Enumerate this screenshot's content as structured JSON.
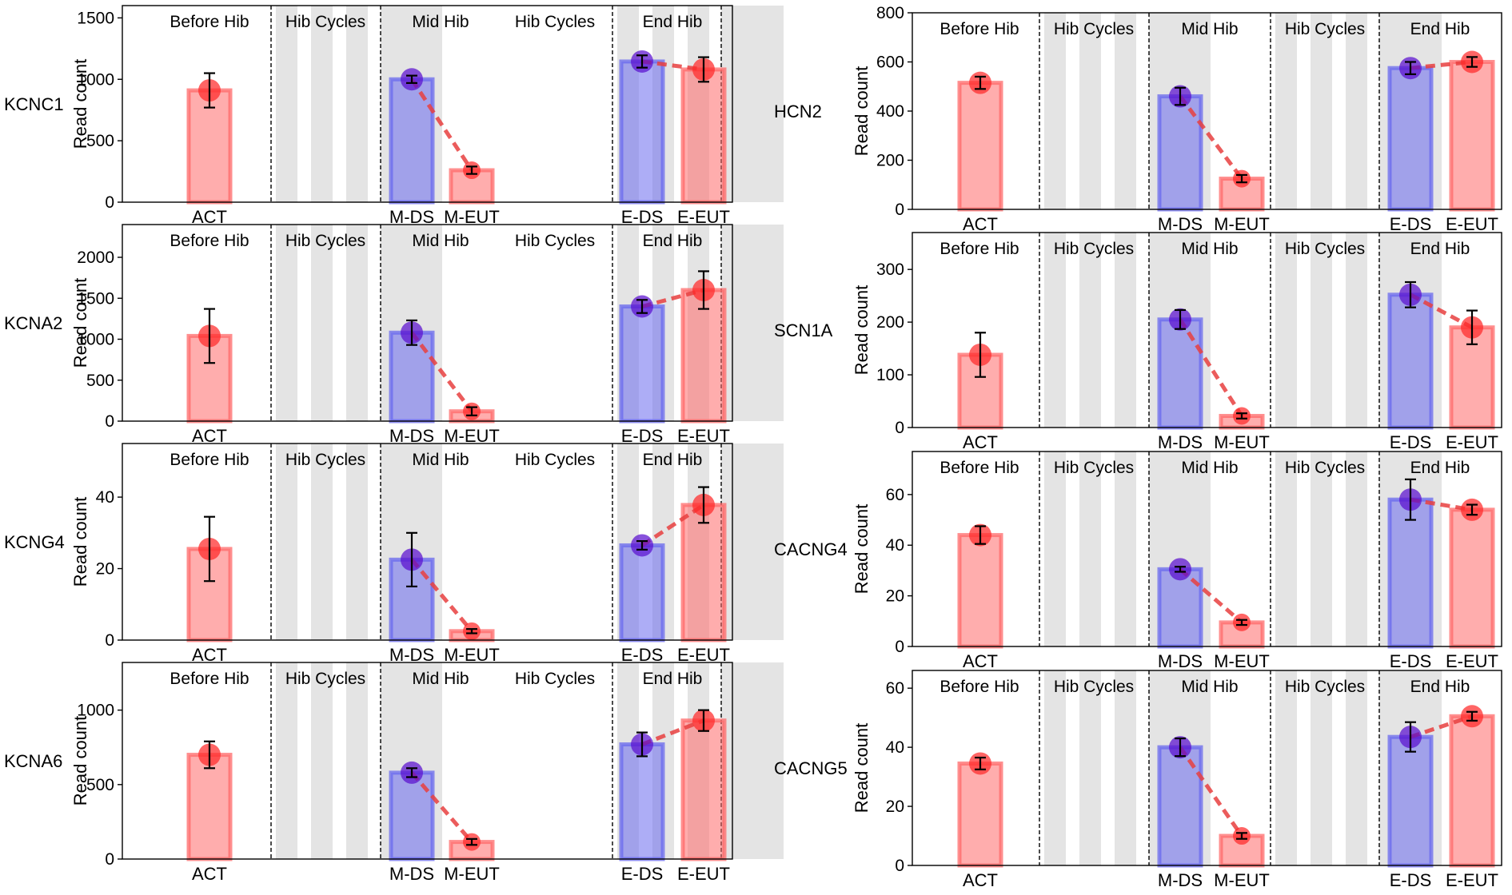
{
  "figure": {
    "columns": [
      [
        {
          "gene": "KCNC1",
          "ylim": [
            0,
            1600
          ],
          "yticks": [
            0,
            500,
            1000,
            1500
          ],
          "values": [
            910,
            1000,
            260,
            1145,
            1080
          ],
          "errors": [
            140,
            30,
            30,
            50,
            100
          ]
        },
        {
          "gene": "KCNA2",
          "ylim": [
            0,
            2400
          ],
          "yticks": [
            0,
            500,
            1000,
            1500,
            2000
          ],
          "values": [
            1040,
            1080,
            120,
            1400,
            1600
          ],
          "errors": [
            330,
            150,
            50,
            80,
            230
          ]
        },
        {
          "gene": "KCNG4",
          "ylim": [
            0,
            55
          ],
          "yticks": [
            0,
            20,
            40
          ],
          "values": [
            25.5,
            22.5,
            2.5,
            26.5,
            37.8
          ],
          "errors": [
            9,
            7.5,
            0.6,
            1.2,
            5
          ]
        },
        {
          "gene": "KCNA6",
          "ylim": [
            0,
            1320
          ],
          "yticks": [
            0,
            500,
            1000
          ],
          "values": [
            700,
            580,
            115,
            770,
            930
          ],
          "errors": [
            90,
            30,
            20,
            80,
            70
          ]
        }
      ],
      [
        {
          "gene": "HCN2",
          "ylim": [
            0,
            800
          ],
          "yticks": [
            0,
            200,
            400,
            600,
            800
          ],
          "values": [
            515,
            460,
            125,
            575,
            600
          ],
          "errors": [
            25,
            35,
            15,
            25,
            20
          ]
        },
        {
          "gene": "SCN1A",
          "ylim": [
            0,
            370
          ],
          "yticks": [
            0,
            100,
            200,
            300
          ],
          "values": [
            138,
            205,
            22,
            252,
            190
          ],
          "errors": [
            42,
            18,
            5,
            24,
            32
          ]
        },
        {
          "gene": "CACNG4",
          "ylim": [
            0,
            77
          ],
          "yticks": [
            0,
            20,
            40,
            60
          ],
          "values": [
            44,
            30.5,
            9.5,
            58,
            54
          ],
          "errors": [
            3.5,
            1,
            1,
            8,
            2
          ]
        },
        {
          "gene": "CACNG5",
          "ylim": [
            0,
            66
          ],
          "yticks": [
            0,
            20,
            40,
            60
          ],
          "values": [
            34.5,
            40,
            10,
            43.5,
            50.5
          ],
          "errors": [
            2,
            3,
            1,
            5,
            1.5
          ]
        }
      ]
    ]
  },
  "chart_data": {
    "type": "bar",
    "title": "",
    "xlabel": "",
    "ylabel": "Read count",
    "categories": [
      "ACT",
      "M-DS",
      "M-EUT",
      "E-DS",
      "E-EUT"
    ],
    "phases": [
      "Before Hib",
      "Hib Cycles",
      "Mid Hib",
      "Hib Cycles",
      "End Hib"
    ],
    "colors": {
      "active": "#ff6a6a",
      "torpor": "#6a6aee",
      "point_active": "#ff2a2a",
      "point_torpor": "#5a0fcf",
      "line": "#e84040",
      "shading": "#e4e4e4"
    },
    "series_note": "values per gene in category order; errors are symmetric error bars"
  }
}
